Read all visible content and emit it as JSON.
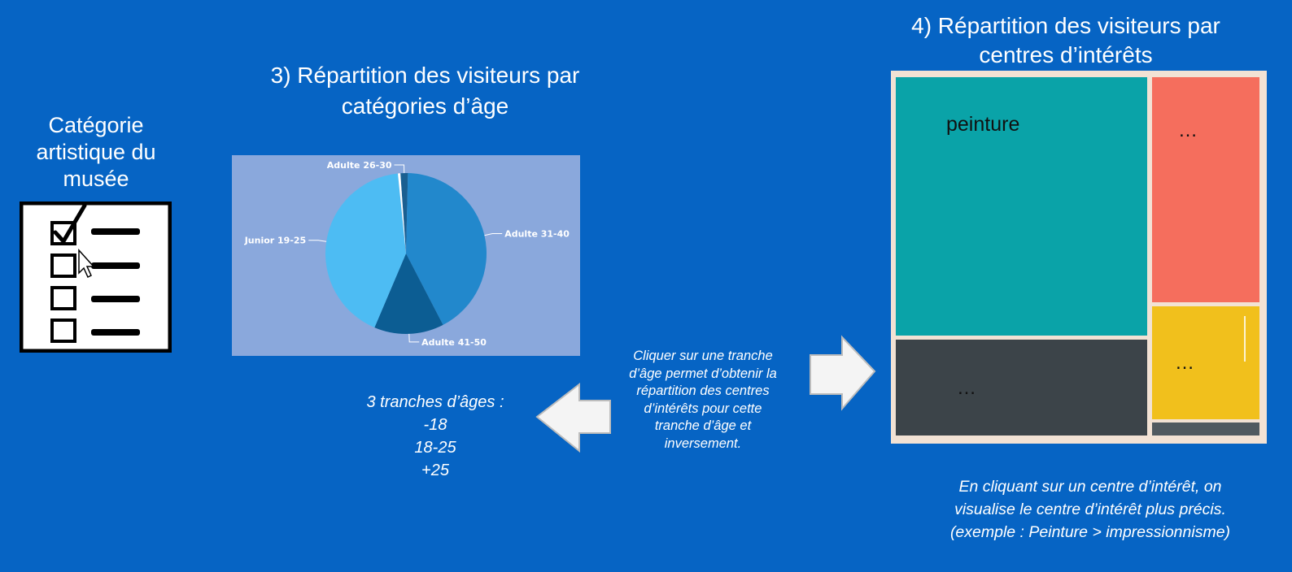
{
  "left_panel": {
    "title_lines": [
      "Catégorie",
      "artistique du",
      "musée"
    ],
    "checklist_icon": "checklist-icon",
    "cursor_icon": "mouse-pointer-icon"
  },
  "pie_section": {
    "title_lines": [
      "3) Répartition des visiteurs par",
      "catégories d’âge"
    ],
    "chart_data": {
      "type": "pie",
      "slices": [
        {
          "label": "Adulte 26-30",
          "value": 1.5,
          "color": "#1a5f91"
        },
        {
          "label": "Adulte 31-40",
          "value": 42,
          "color": "#2288cc"
        },
        {
          "label": "Adulte 41-50",
          "value": 14,
          "color": "#0c5d93"
        },
        {
          "label": "Junior 19-25",
          "value": 42,
          "color": "#4dbcf3"
        },
        {
          "label": "",
          "value": 0.5,
          "color": "#ffffff"
        }
      ],
      "start_angle_deg": -4
    }
  },
  "age_info": {
    "lines": [
      "3 tranches d’âges :",
      "-18",
      "18-25",
      "+25"
    ]
  },
  "middle_text": {
    "lines": [
      "Cliquer sur une tranche",
      "d’âge permet d’obtenir la",
      "répartition des centres",
      "d’intérêts pour cette",
      "tranche d’âge et",
      "inversement."
    ]
  },
  "arrows": {
    "left_icon": "arrow-left-icon",
    "right_icon": "arrow-right-icon"
  },
  "treemap_section": {
    "title_lines": [
      "4) Répartition des visiteurs par",
      "centres d’intérêts"
    ],
    "tiles": {
      "peinture": "peinture",
      "red": "…",
      "dark": "…",
      "yellow": "…"
    },
    "caption_lines": [
      "En cliquant sur un centre d’intérêt, on",
      "visualise le centre d’intérêt plus précis.",
      "(exemple : Peinture > impressionnisme)"
    ]
  }
}
